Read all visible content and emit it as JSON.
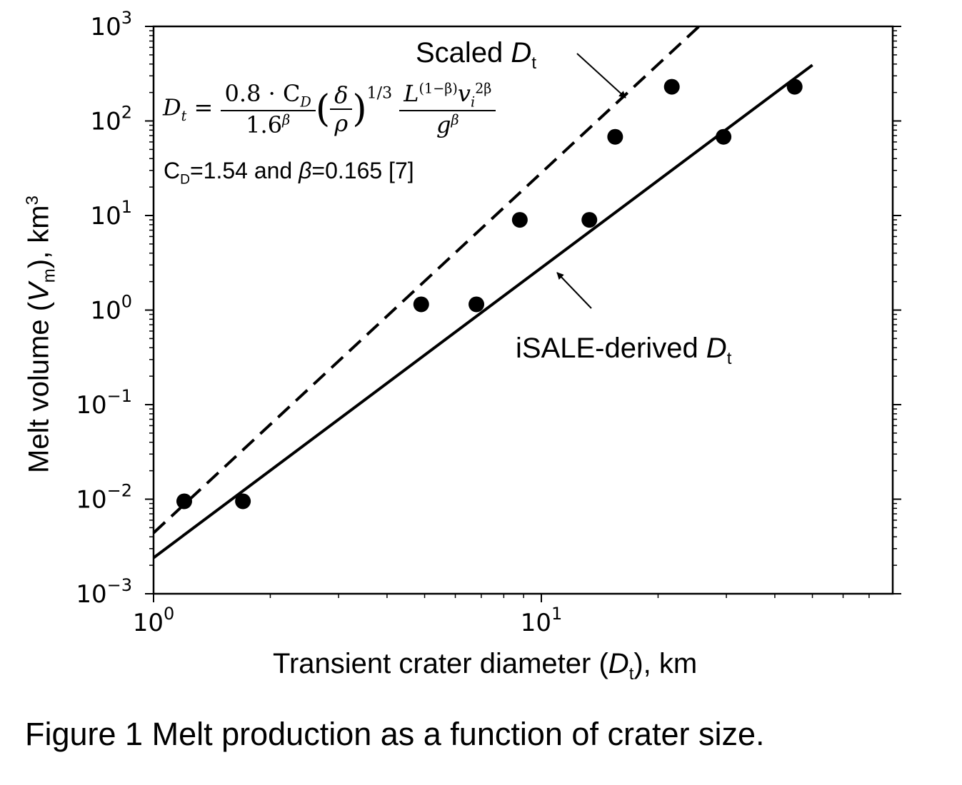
{
  "chart_data": {
    "type": "scatter",
    "xscale": "log",
    "yscale": "log",
    "xlim": [
      1,
      70
    ],
    "ylim": [
      0.001,
      1000
    ],
    "x_ticks": [
      {
        "value": 1,
        "base": "10",
        "exp": "0"
      },
      {
        "value": 10,
        "base": "10",
        "exp": "1"
      }
    ],
    "y_ticks": [
      {
        "value": 1000,
        "base": "10",
        "exp": "3"
      },
      {
        "value": 100,
        "base": "10",
        "exp": "2"
      },
      {
        "value": 10,
        "base": "10",
        "exp": "1"
      },
      {
        "value": 1,
        "base": "10",
        "exp": "0"
      },
      {
        "value": 0.1,
        "base": "10",
        "exp": "−1"
      },
      {
        "value": 0.01,
        "base": "10",
        "exp": "−2"
      },
      {
        "value": 0.001,
        "base": "10",
        "exp": "−3"
      }
    ],
    "series": [
      {
        "style": "dashed",
        "points": [
          {
            "x": 1.2,
            "y": 0.0095
          },
          {
            "x": 4.9,
            "y": 1.15
          },
          {
            "x": 8.8,
            "y": 9.0
          },
          {
            "x": 15.5,
            "y": 68
          },
          {
            "x": 21.7,
            "y": 230
          }
        ],
        "fit": [
          {
            "x": 1.0,
            "y": 0.0044
          },
          {
            "x": 25.5,
            "y": 1000
          }
        ]
      },
      {
        "style": "solid",
        "points": [
          {
            "x": 1.7,
            "y": 0.0095
          },
          {
            "x": 6.8,
            "y": 1.15
          },
          {
            "x": 13.3,
            "y": 9.0
          },
          {
            "x": 29.5,
            "y": 68
          },
          {
            "x": 45.0,
            "y": 230
          }
        ],
        "fit": [
          {
            "x": 1.0,
            "y": 0.0024
          },
          {
            "x": 50.0,
            "y": 390
          }
        ]
      }
    ],
    "xlabel": {
      "text": "Transient crater diameter (",
      "var": "D",
      "sub": "t",
      "tail": "), km"
    },
    "ylabel": {
      "text": "Melt volume (",
      "var": "V",
      "sub": "m",
      "tail": "), km",
      "sup": "3"
    },
    "annotations": {
      "scaled": {
        "text": "Scaled ",
        "var": "D",
        "sub": "t"
      },
      "isale": {
        "text": "iSALE-derived ",
        "var": "D",
        "sub": "t"
      },
      "params": {
        "c": "C",
        "c_sub": "D",
        "mid": "=1.54 and ",
        "beta": "β",
        "tail": "=0.165 [7]"
      },
      "formula": {
        "lhs": "D",
        "lhs_sub": "t",
        "eq": "=",
        "f1_num": "0.8 · C",
        "f1_num_sub": "D",
        "f1_den": "1.6",
        "f1_den_sup": "β",
        "paren_l": "(",
        "paren_r": ")",
        "f2_num": "δ",
        "f2_den": "ρ",
        "exp": "1/3",
        "f3_num_a": "L",
        "f3_num_a_sup": "(1−β)",
        "f3_num_b": "v",
        "f3_num_b_sub": "i",
        "f3_num_b_sup": "2β",
        "f3_den": "g",
        "f3_den_sup": "β"
      }
    },
    "grid": false,
    "legend": "none"
  },
  "caption": "Figure 1 Melt production as a function of crater size."
}
